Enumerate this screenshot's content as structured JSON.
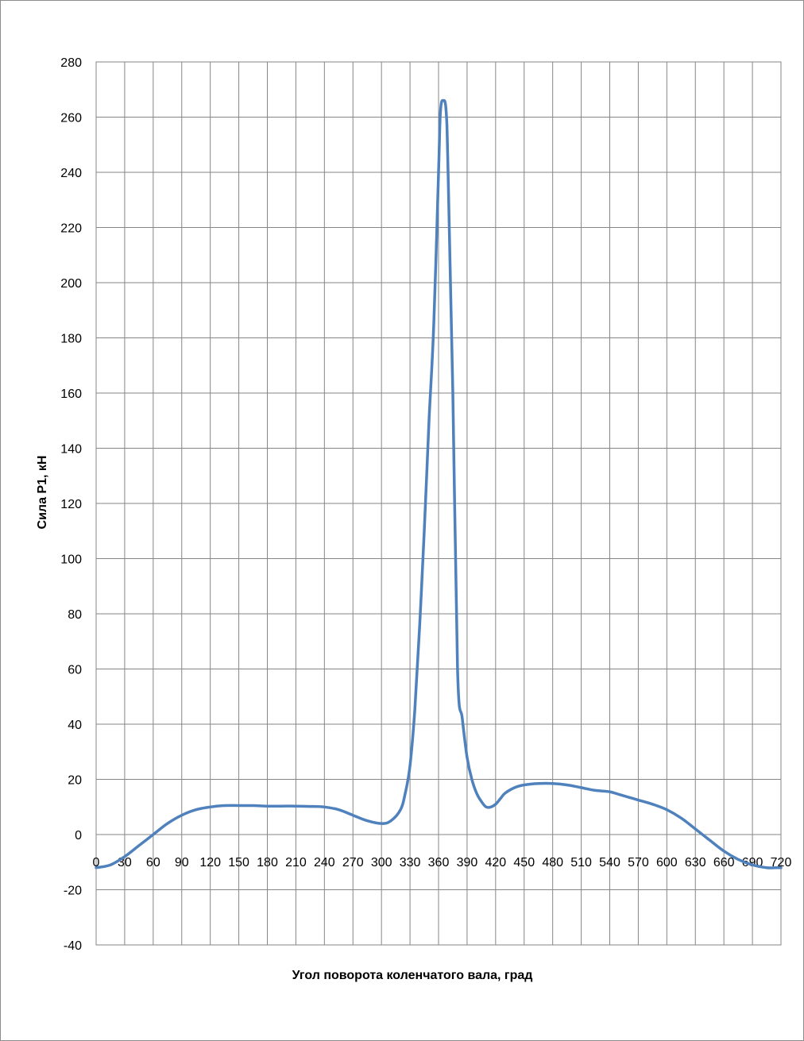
{
  "chart_data": {
    "type": "line",
    "title": "",
    "xlabel": "Угол поворота коленчатого вала, град",
    "ylabel": "Сила P1, кН",
    "xlim": [
      0,
      720
    ],
    "ylim": [
      -40,
      280
    ],
    "x_ticks": [
      0,
      30,
      60,
      90,
      120,
      150,
      180,
      210,
      240,
      270,
      300,
      330,
      360,
      390,
      420,
      450,
      480,
      510,
      540,
      570,
      600,
      630,
      660,
      690,
      720
    ],
    "y_ticks": [
      -40,
      -20,
      0,
      20,
      40,
      60,
      80,
      100,
      120,
      140,
      160,
      180,
      200,
      220,
      240,
      260,
      280
    ],
    "grid": true,
    "legend": "none",
    "series": [
      {
        "color": "#4f81bd",
        "x": [
          0,
          15,
          30,
          45,
          60,
          75,
          90,
          105,
          120,
          135,
          150,
          165,
          180,
          195,
          210,
          225,
          240,
          255,
          270,
          285,
          300,
          310,
          320,
          325,
          330,
          335,
          340,
          345,
          350,
          355,
          360,
          362,
          365,
          368,
          370,
          375,
          380,
          385,
          390,
          395,
          400,
          405,
          410,
          415,
          420,
          425,
          430,
          440,
          450,
          465,
          480,
          495,
          510,
          525,
          540,
          550,
          560,
          570,
          585,
          600,
          615,
          630,
          645,
          660,
          675,
          690,
          705,
          715,
          720
        ],
        "y": [
          -12,
          -11,
          -8,
          -4,
          0,
          4,
          7,
          9,
          10,
          10.5,
          10.5,
          10.5,
          10.3,
          10.3,
          10.3,
          10.2,
          10,
          9,
          7,
          5,
          4,
          5,
          9,
          15,
          25,
          45,
          75,
          110,
          150,
          185,
          240,
          262,
          266,
          262,
          240,
          160,
          60,
          42,
          28,
          20,
          15,
          12,
          10,
          10,
          11,
          13,
          15,
          17,
          18,
          18.5,
          18.5,
          18,
          17,
          16,
          15.5,
          14.5,
          13.5,
          12.5,
          11,
          9,
          6,
          2,
          -2,
          -6,
          -9,
          -11,
          -12,
          -12,
          -12
        ]
      }
    ]
  }
}
